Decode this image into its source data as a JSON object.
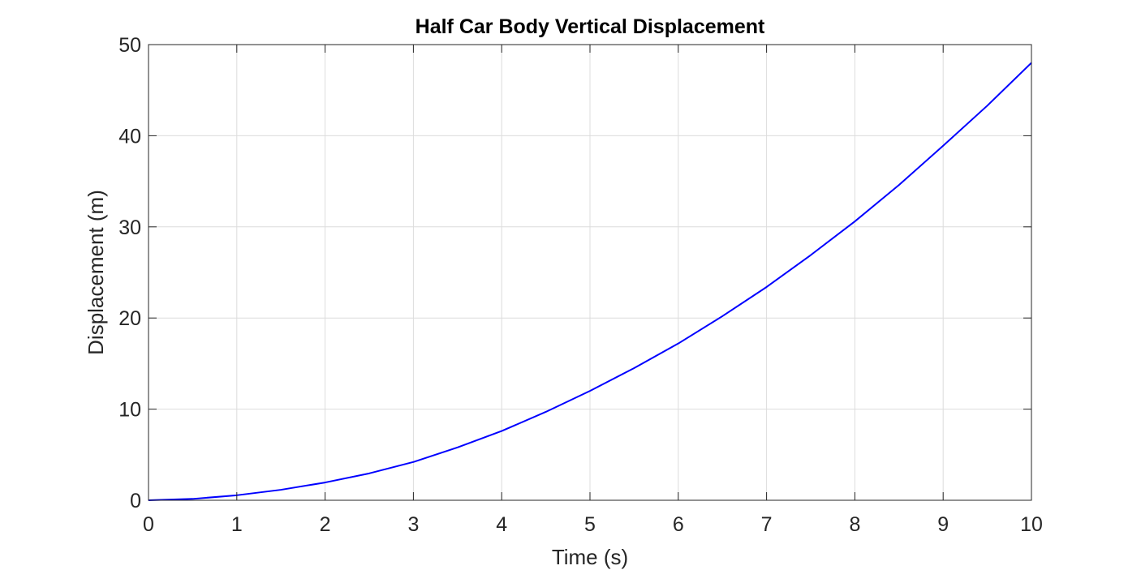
{
  "chart_data": {
    "type": "line",
    "title": "Half Car Body Vertical Displacement",
    "xlabel": "Time (s)",
    "ylabel": "Displacement (m)",
    "xlim": [
      0,
      10
    ],
    "ylim": [
      0,
      50
    ],
    "xticks": [
      "0",
      "1",
      "2",
      "3",
      "4",
      "5",
      "6",
      "7",
      "8",
      "9",
      "10"
    ],
    "yticks": [
      "0",
      "10",
      "20",
      "30",
      "40",
      "50"
    ],
    "grid": true,
    "box": true,
    "series": [
      {
        "color": "#0000ff",
        "x": [
          0,
          0.5,
          1,
          1.5,
          2,
          2.5,
          3,
          3.5,
          4,
          4.5,
          5,
          5.5,
          6,
          6.5,
          7,
          7.5,
          8,
          8.5,
          9,
          9.5,
          10
        ],
        "y": [
          0,
          0.15,
          0.55,
          1.15,
          1.95,
          2.95,
          4.2,
          5.8,
          7.6,
          9.7,
          12.0,
          14.5,
          17.2,
          20.2,
          23.4,
          26.9,
          30.6,
          34.6,
          38.9,
          43.3,
          48.0
        ]
      }
    ]
  }
}
